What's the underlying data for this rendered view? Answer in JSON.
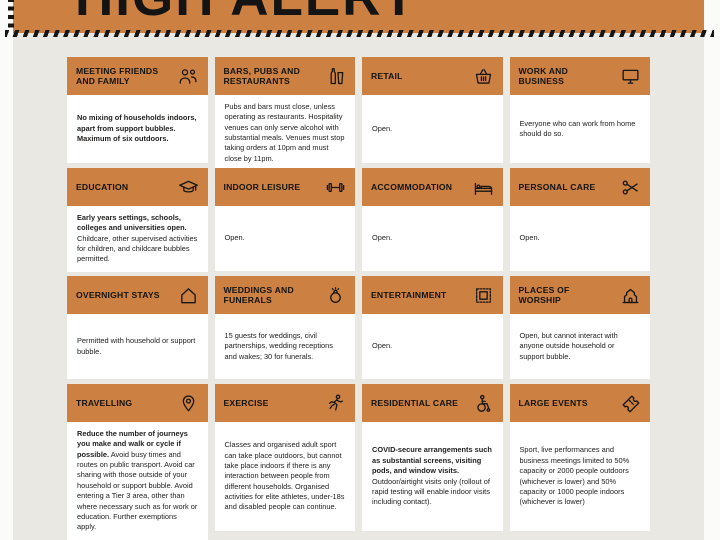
{
  "banner": {
    "title": "HIGH ALERT"
  },
  "colors": {
    "accent_orange": "#cc8142",
    "background_grey": "#e9e8e2",
    "card_white": "#ffffff",
    "text_black": "#222120"
  },
  "cards": [
    {
      "title": "MEETING FRIENDS AND FAMILY",
      "icon": "people-icon",
      "bold": "No mixing of households indoors, apart from support bubbles. Maximum of six outdoors.",
      "text": ""
    },
    {
      "title": "BARS, PUBS AND RESTAURANTS",
      "icon": "bottle-and-glass-icon",
      "bold": "",
      "text": "Pubs and bars must close, unless operating as restaurants. Hospitality venues can only serve alcohol with substantial meals. Venues must stop taking orders at 10pm and must close by 11pm."
    },
    {
      "title": "RETAIL",
      "icon": "shopping-basket-icon",
      "bold": "",
      "text": "Open."
    },
    {
      "title": "WORK AND BUSINESS",
      "icon": "monitor-icon",
      "bold": "",
      "text": "Everyone who can work from home should do so."
    },
    {
      "title": "EDUCATION",
      "icon": "mortarboard-icon",
      "bold": "Early years settings, schools, colleges and universities open.",
      "text": " Childcare, other supervised activities for children, and childcare bubbles permitted."
    },
    {
      "title": "INDOOR LEISURE",
      "icon": "dumbbell-icon",
      "bold": "",
      "text": "Open."
    },
    {
      "title": "ACCOMMODATION",
      "icon": "bed-icon",
      "bold": "",
      "text": "Open."
    },
    {
      "title": "PERSONAL CARE",
      "icon": "scissors-icon",
      "bold": "",
      "text": "Open."
    },
    {
      "title": "OVERNIGHT STAYS",
      "icon": "house-icon",
      "bold": "",
      "text": "Permitted with household or support bubble."
    },
    {
      "title": "WEDDINGS AND FUNERALS",
      "icon": "ring-icon",
      "bold": "",
      "text": "15 guests for weddings, civil partnerships, wedding receptions and wakes; 30 for funerals."
    },
    {
      "title": "ENTERTAINMENT",
      "icon": "stage-frame-icon",
      "bold": "",
      "text": "Open."
    },
    {
      "title": "PLACES OF WORSHIP",
      "icon": "worship-building-icon",
      "bold": "",
      "text": "Open, but cannot interact with anyone outside household or support bubble."
    },
    {
      "title": "TRAVELLING",
      "icon": "map-pin-icon",
      "bold": "Reduce the number of journeys you make and walk or cycle if possible.",
      "text": " Avoid busy times and routes on public transport. Avoid car sharing with those outside of your household or support bubble. Avoid entering a Tier 3 area, other than where necessary such as for work or education. Further exemptions apply."
    },
    {
      "title": "EXERCISE",
      "icon": "runner-icon",
      "bold": "",
      "text": "Classes and organised adult sport can take place outdoors, but cannot take place indoors if there is any interaction between people from different households. Organised activities for elite athletes, under-18s and disabled people can continue."
    },
    {
      "title": "RESIDENTIAL CARE",
      "icon": "wheelchair-icon",
      "bold": "COVID-secure arrangements such as substantial screens, visiting pods, and window visits.",
      "text": " Outdoor/airtight visits only (rollout of rapid testing will enable indoor visits including contact)."
    },
    {
      "title": "LARGE EVENTS",
      "icon": "ticket-icon",
      "bold": "",
      "text": "Sport, live performances and business meetings limited to 50% capacity or 2000 people outdoors (whichever is lower) and 50% capacity or 1000 people indoors (whichever is lower)"
    }
  ]
}
